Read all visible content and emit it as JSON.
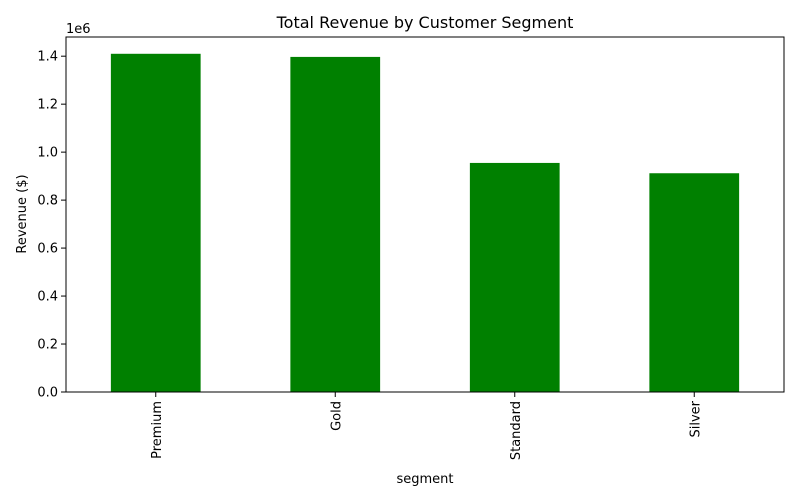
{
  "chart_data": {
    "type": "bar",
    "title": "Total Revenue by Customer Segment",
    "xlabel": "segment",
    "ylabel": "Revenue ($)",
    "offset_label": "1e6",
    "categories": [
      "Premium",
      "Gold",
      "Standard",
      "Silver"
    ],
    "values": [
      1410000,
      1397000,
      955000,
      912000
    ],
    "ylim": [
      0,
      1480000
    ],
    "yticks": [
      0,
      200000,
      400000,
      600000,
      800000,
      1000000,
      1200000,
      1400000
    ],
    "ytick_labels": [
      "0.0",
      "0.2",
      "0.4",
      "0.6",
      "0.8",
      "1.0",
      "1.2",
      "1.4"
    ],
    "bar_color": "#008000",
    "grid": false,
    "legend": "none"
  }
}
